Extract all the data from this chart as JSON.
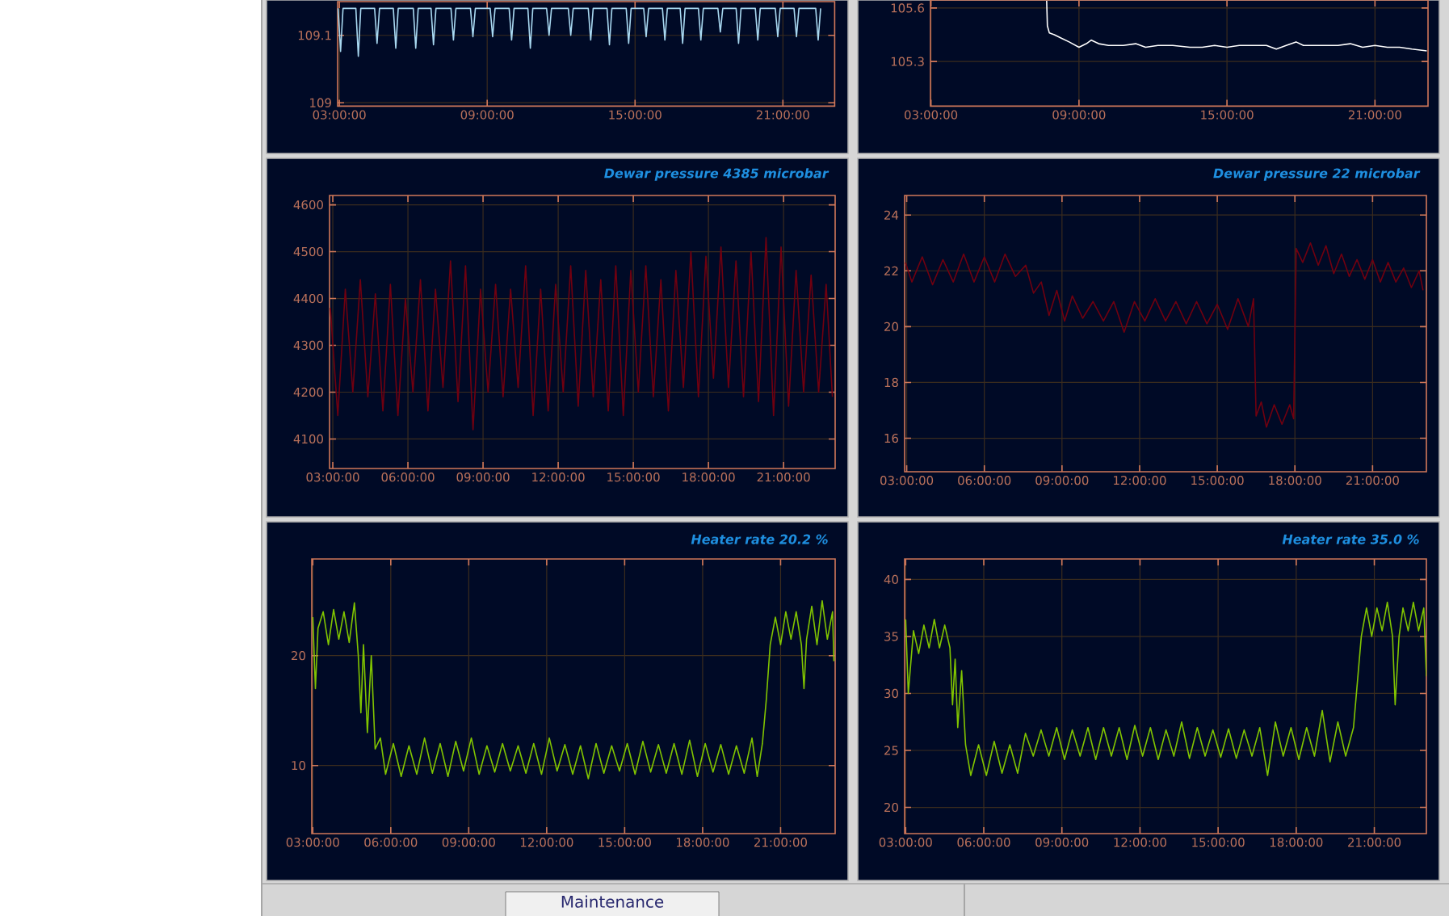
{
  "chart_data": [
    {
      "type": "line",
      "grid": true,
      "xlim": [
        2.93,
        23.1
      ],
      "ylim": [
        108.995,
        109.15
      ],
      "yticks": [
        109,
        109.1
      ],
      "xticks": [
        {
          "value": 3,
          "label": "03:00:00"
        },
        {
          "value": 9,
          "label": "09:00:00"
        },
        {
          "value": 15,
          "label": "15:00:00"
        },
        {
          "value": 21,
          "label": "21:00:00"
        }
      ],
      "x": [
        2.95,
        3.05,
        3.15,
        3.67,
        3.77,
        3.87,
        4.43,
        4.53,
        4.63,
        5.19,
        5.29,
        5.39,
        6.0,
        6.1,
        6.2,
        6.72,
        6.82,
        6.92,
        7.53,
        7.63,
        7.73,
        8.32,
        8.42,
        8.52,
        9.12,
        9.22,
        9.32,
        9.89,
        9.99,
        10.09,
        10.65,
        10.75,
        10.85,
        11.41,
        11.51,
        11.61,
        12.29,
        12.39,
        12.49,
        13.1,
        13.2,
        13.3,
        13.86,
        13.96,
        14.06,
        14.64,
        14.74,
        14.84,
        15.35,
        15.45,
        15.55,
        16.11,
        16.21,
        16.31,
        16.83,
        16.93,
        17.03,
        17.57,
        17.67,
        17.77,
        18.36,
        18.46,
        18.56,
        19.1,
        19.2,
        19.3,
        19.88,
        19.98,
        20.08,
        20.69,
        20.79,
        20.89,
        21.45,
        21.55,
        21.65,
        22.33,
        22.43,
        22.53
      ],
      "series": [
        {
          "color": "#a8d8f0",
          "values": [
            109.14,
            109.076,
            109.14,
            109.14,
            109.069,
            109.14,
            109.14,
            109.088,
            109.14,
            109.14,
            109.081,
            109.14,
            109.14,
            109.081,
            109.14,
            109.14,
            109.086,
            109.14,
            109.14,
            109.093,
            109.14,
            109.14,
            109.098,
            109.14,
            109.14,
            109.098,
            109.14,
            109.14,
            109.093,
            109.14,
            109.14,
            109.081,
            109.14,
            109.14,
            109.1,
            109.14,
            109.14,
            109.1,
            109.14,
            109.14,
            109.093,
            109.14,
            109.14,
            109.086,
            109.14,
            109.14,
            109.088,
            109.14,
            109.14,
            109.098,
            109.14,
            109.14,
            109.093,
            109.14,
            109.14,
            109.088,
            109.14,
            109.14,
            109.093,
            109.14,
            109.14,
            109.105,
            109.14,
            109.14,
            109.088,
            109.14,
            109.14,
            109.093,
            109.14,
            109.14,
            109.098,
            109.14,
            109.14,
            109.098,
            109.14,
            109.14,
            109.093,
            109.14
          ]
        }
      ]
    },
    {
      "type": "line",
      "grid": true,
      "xlim": [
        2.98,
        23.15
      ],
      "ylim": [
        105.05,
        105.645
      ],
      "yticks": [
        105.3,
        105.6
      ],
      "xticks": [
        {
          "value": 3,
          "label": "03:00:00"
        },
        {
          "value": 9,
          "label": "09:00:00"
        },
        {
          "value": 15,
          "label": "15:00:00"
        },
        {
          "value": 21,
          "label": "21:00:00"
        }
      ],
      "x": [
        7.69,
        7.72,
        7.8,
        8.0,
        8.3,
        8.6,
        9.0,
        9.3,
        9.5,
        9.8,
        10.2,
        10.8,
        11.3,
        11.7,
        12.2,
        12.8,
        13.5,
        14.0,
        14.5,
        15.0,
        15.5,
        16.0,
        16.6,
        17.0,
        17.4,
        17.8,
        18.1,
        18.8,
        19.5,
        20.0,
        20.5,
        21.0,
        21.5,
        22.0,
        22.5,
        23.1
      ],
      "series": [
        {
          "color": "#ffffff",
          "values": [
            105.64,
            105.5,
            105.46,
            105.45,
            105.43,
            105.41,
            105.38,
            105.4,
            105.42,
            105.4,
            105.39,
            105.39,
            105.4,
            105.38,
            105.39,
            105.39,
            105.38,
            105.38,
            105.39,
            105.38,
            105.39,
            105.39,
            105.39,
            105.37,
            105.39,
            105.41,
            105.39,
            105.39,
            105.39,
            105.4,
            105.38,
            105.39,
            105.38,
            105.38,
            105.37,
            105.36
          ]
        }
      ]
    },
    {
      "type": "line",
      "title": "Dewar pressure 4385 microbar",
      "grid": true,
      "xlim": [
        2.87,
        23.06
      ],
      "ylim": [
        4037,
        4620
      ],
      "yticks": [
        4100,
        4200,
        4300,
        4400,
        4500,
        4600
      ],
      "xticks": [
        {
          "value": 3,
          "label": "03:00:00"
        },
        {
          "value": 6,
          "label": "06:00:00"
        },
        {
          "value": 9,
          "label": "09:00:00"
        },
        {
          "value": 12,
          "label": "12:00:00"
        },
        {
          "value": 15,
          "label": "15:00:00"
        },
        {
          "value": 18,
          "label": "18:00:00"
        },
        {
          "value": 21,
          "label": "21:00:00"
        }
      ],
      "x": [
        2.9,
        3.2,
        3.5,
        3.8,
        4.1,
        4.4,
        4.7,
        5.0,
        5.3,
        5.6,
        5.9,
        6.2,
        6.5,
        6.8,
        7.1,
        7.4,
        7.7,
        8.0,
        8.3,
        8.6,
        8.9,
        9.2,
        9.5,
        9.8,
        10.1,
        10.4,
        10.7,
        11.0,
        11.3,
        11.6,
        11.9,
        12.2,
        12.5,
        12.8,
        13.1,
        13.4,
        13.7,
        14.0,
        14.3,
        14.6,
        14.9,
        15.2,
        15.5,
        15.8,
        16.1,
        16.4,
        16.7,
        17.0,
        17.3,
        17.6,
        17.9,
        18.2,
        18.5,
        18.8,
        19.1,
        19.4,
        19.7,
        20.0,
        20.3,
        20.6,
        20.9,
        21.2,
        21.5,
        21.8,
        22.1,
        22.4,
        22.7,
        22.95
      ],
      "series": [
        {
          "color": "#700010",
          "values": [
            4380,
            4150,
            4420,
            4200,
            4440,
            4190,
            4410,
            4160,
            4430,
            4150,
            4400,
            4200,
            4440,
            4160,
            4420,
            4210,
            4480,
            4180,
            4470,
            4120,
            4420,
            4200,
            4430,
            4190,
            4420,
            4210,
            4470,
            4150,
            4420,
            4160,
            4430,
            4200,
            4470,
            4170,
            4460,
            4190,
            4440,
            4160,
            4470,
            4150,
            4460,
            4200,
            4470,
            4190,
            4440,
            4160,
            4460,
            4210,
            4500,
            4190,
            4490,
            4230,
            4510,
            4210,
            4480,
            4190,
            4500,
            4180,
            4530,
            4150,
            4510,
            4170,
            4460,
            4200,
            4450,
            4200,
            4430,
            4190
          ]
        }
      ]
    },
    {
      "type": "line",
      "title": "Dewar pressure 22 microbar",
      "grid": true,
      "xlim": [
        2.92,
        23.08
      ],
      "ylim": [
        14.8,
        24.7
      ],
      "yticks": [
        16,
        18,
        20,
        22,
        24
      ],
      "xticks": [
        {
          "value": 3,
          "label": "03:00:00"
        },
        {
          "value": 6,
          "label": "06:00:00"
        },
        {
          "value": 9,
          "label": "09:00:00"
        },
        {
          "value": 12,
          "label": "12:00:00"
        },
        {
          "value": 15,
          "label": "15:00:00"
        },
        {
          "value": 18,
          "label": "18:00:00"
        },
        {
          "value": 21,
          "label": "21:00:00"
        }
      ],
      "x": [
        2.95,
        3.2,
        3.6,
        4.0,
        4.4,
        4.8,
        5.2,
        5.6,
        6.0,
        6.4,
        6.8,
        7.2,
        7.6,
        7.9,
        8.2,
        8.5,
        8.8,
        9.1,
        9.4,
        9.8,
        10.2,
        10.6,
        11.0,
        11.4,
        11.8,
        12.2,
        12.6,
        13.0,
        13.4,
        13.8,
        14.2,
        14.6,
        15.0,
        15.4,
        15.8,
        16.2,
        16.4,
        16.5,
        16.7,
        16.9,
        17.2,
        17.5,
        17.8,
        17.95,
        18.05,
        18.3,
        18.6,
        18.9,
        19.2,
        19.5,
        19.8,
        20.1,
        20.4,
        20.7,
        21.0,
        21.3,
        21.6,
        21.9,
        22.2,
        22.5,
        22.8,
        22.95
      ],
      "series": [
        {
          "color": "#700010",
          "values": [
            22.3,
            21.6,
            22.5,
            21.5,
            22.4,
            21.6,
            22.6,
            21.6,
            22.5,
            21.6,
            22.6,
            21.8,
            22.2,
            21.2,
            21.6,
            20.4,
            21.3,
            20.2,
            21.1,
            20.3,
            20.9,
            20.2,
            20.9,
            19.8,
            20.9,
            20.2,
            21.0,
            20.2,
            20.9,
            20.1,
            20.9,
            20.1,
            20.8,
            19.9,
            21.0,
            20.0,
            21.0,
            16.8,
            17.3,
            16.4,
            17.2,
            16.5,
            17.2,
            16.7,
            22.8,
            22.3,
            23.0,
            22.2,
            22.9,
            21.9,
            22.6,
            21.8,
            22.4,
            21.7,
            22.4,
            21.6,
            22.3,
            21.6,
            22.1,
            21.4,
            22.0,
            21.3
          ]
        }
      ]
    },
    {
      "type": "line",
      "title": "Heater rate 20.2 %",
      "grid": true,
      "xlim": [
        2.96,
        23.1
      ],
      "ylim": [
        3.8,
        28.8
      ],
      "yticks": [
        10,
        20
      ],
      "xticks": [
        {
          "value": 3,
          "label": "03:00:00"
        },
        {
          "value": 6,
          "label": "06:00:00"
        },
        {
          "value": 9,
          "label": "09:00:00"
        },
        {
          "value": 12,
          "label": "12:00:00"
        },
        {
          "value": 15,
          "label": "15:00:00"
        },
        {
          "value": 18,
          "label": "18:00:00"
        },
        {
          "value": 21,
          "label": "21:00:00"
        }
      ],
      "x": [
        3.0,
        3.1,
        3.2,
        3.4,
        3.6,
        3.8,
        4.0,
        4.2,
        4.4,
        4.6,
        4.75,
        4.85,
        4.95,
        5.1,
        5.25,
        5.4,
        5.6,
        5.8,
        6.1,
        6.4,
        6.7,
        7.0,
        7.3,
        7.6,
        7.9,
        8.2,
        8.5,
        8.8,
        9.1,
        9.4,
        9.7,
        10.0,
        10.3,
        10.6,
        10.9,
        11.2,
        11.5,
        11.8,
        12.1,
        12.4,
        12.7,
        13.0,
        13.3,
        13.6,
        13.9,
        14.2,
        14.5,
        14.8,
        15.1,
        15.4,
        15.7,
        16.0,
        16.3,
        16.6,
        16.9,
        17.2,
        17.5,
        17.8,
        18.1,
        18.4,
        18.7,
        19.0,
        19.3,
        19.6,
        19.9,
        20.1,
        20.3,
        20.45,
        20.6,
        20.8,
        21.0,
        21.2,
        21.4,
        21.6,
        21.8,
        21.9,
        22.0,
        22.2,
        22.4,
        22.6,
        22.8,
        23.0,
        23.05
      ],
      "series": [
        {
          "color": "#80c400",
          "values": [
            23.5,
            17.0,
            22.5,
            24.0,
            21.0,
            24.2,
            21.5,
            24.0,
            21.2,
            24.8,
            20.0,
            14.8,
            21.0,
            13.0,
            20.0,
            11.5,
            12.5,
            9.2,
            12.0,
            9.0,
            11.8,
            9.2,
            12.5,
            9.3,
            12.0,
            9.0,
            12.2,
            9.5,
            12.5,
            9.2,
            11.8,
            9.4,
            12.0,
            9.5,
            11.8,
            9.3,
            12.0,
            9.2,
            12.5,
            9.5,
            11.9,
            9.2,
            11.8,
            8.8,
            12.0,
            9.3,
            11.8,
            9.5,
            12.0,
            9.2,
            12.2,
            9.4,
            11.9,
            9.3,
            12.0,
            9.2,
            12.3,
            9.0,
            12.0,
            9.4,
            11.9,
            9.2,
            11.8,
            9.3,
            12.5,
            9.0,
            12.0,
            16.0,
            21.0,
            23.5,
            21.0,
            24.0,
            21.5,
            24.0,
            21.0,
            17.0,
            21.5,
            24.5,
            21.0,
            25.0,
            21.5,
            24.0,
            19.5
          ]
        }
      ]
    },
    {
      "type": "line",
      "title": "Heater rate 35.0 %",
      "grid": true,
      "xlim": [
        2.96,
        23.0
      ],
      "ylim": [
        17.7,
        41.8
      ],
      "yticks": [
        20,
        25,
        30,
        35,
        40
      ],
      "xticks": [
        {
          "value": 3,
          "label": "03:00:00"
        },
        {
          "value": 6,
          "label": "06:00:00"
        },
        {
          "value": 9,
          "label": "09:00:00"
        },
        {
          "value": 12,
          "label": "12:00:00"
        },
        {
          "value": 15,
          "label": "15:00:00"
        },
        {
          "value": 18,
          "label": "18:00:00"
        },
        {
          "value": 21,
          "label": "21:00:00"
        }
      ],
      "x": [
        3.0,
        3.1,
        3.3,
        3.5,
        3.7,
        3.9,
        4.1,
        4.3,
        4.5,
        4.7,
        4.8,
        4.9,
        5.0,
        5.15,
        5.3,
        5.5,
        5.8,
        6.1,
        6.4,
        6.7,
        7.0,
        7.3,
        7.6,
        7.9,
        8.2,
        8.5,
        8.8,
        9.1,
        9.4,
        9.7,
        10.0,
        10.3,
        10.6,
        10.9,
        11.2,
        11.5,
        11.8,
        12.1,
        12.4,
        12.7,
        13.0,
        13.3,
        13.6,
        13.9,
        14.2,
        14.5,
        14.8,
        15.1,
        15.4,
        15.7,
        16.0,
        16.3,
        16.6,
        16.9,
        17.2,
        17.5,
        17.8,
        18.1,
        18.4,
        18.7,
        19.0,
        19.3,
        19.6,
        19.9,
        20.2,
        20.35,
        20.5,
        20.7,
        20.9,
        21.1,
        21.3,
        21.5,
        21.7,
        21.8,
        21.95,
        22.1,
        22.3,
        22.5,
        22.7,
        22.9,
        23.0
      ],
      "series": [
        {
          "color": "#80c400",
          "values": [
            36.5,
            30.0,
            35.5,
            33.5,
            36.0,
            34.0,
            36.5,
            34.0,
            36.0,
            34.0,
            29.0,
            33.0,
            27.0,
            32.0,
            25.5,
            22.8,
            25.5,
            22.8,
            25.8,
            23.0,
            25.5,
            23.0,
            26.5,
            24.5,
            26.8,
            24.5,
            27.0,
            24.2,
            26.8,
            24.5,
            27.0,
            24.2,
            27.0,
            24.5,
            27.0,
            24.2,
            27.2,
            24.5,
            27.0,
            24.2,
            26.8,
            24.5,
            27.5,
            24.3,
            27.0,
            24.5,
            26.8,
            24.4,
            26.9,
            24.3,
            26.8,
            24.5,
            27.0,
            22.8,
            27.5,
            24.5,
            27.0,
            24.2,
            27.0,
            24.5,
            28.5,
            24.0,
            27.5,
            24.5,
            27.0,
            31.0,
            35.0,
            37.5,
            35.0,
            37.5,
            35.5,
            38.0,
            35.0,
            29.0,
            35.0,
            37.5,
            35.5,
            38.0,
            35.5,
            37.5,
            31.5
          ]
        }
      ]
    },
    {
      "type": "other",
      "annotations": [
        "Maintenance"
      ]
    }
  ]
}
